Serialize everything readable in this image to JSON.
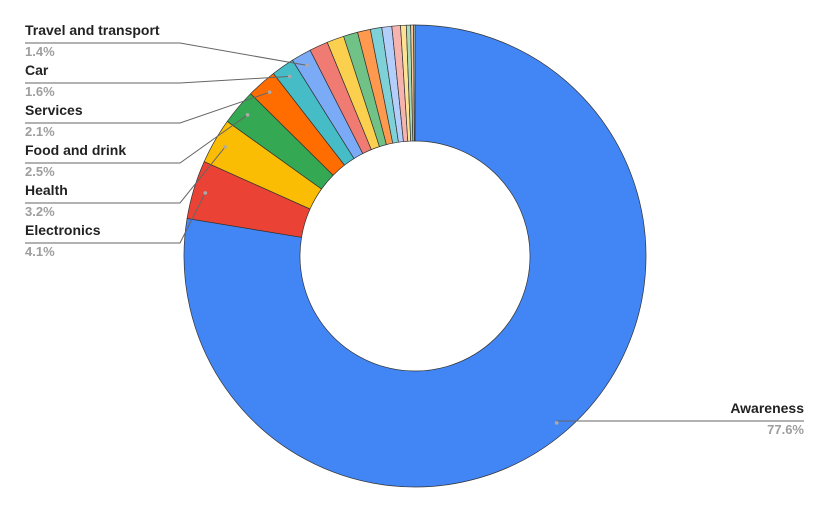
{
  "chart_data": {
    "type": "donut",
    "categories": [
      "Awareness",
      "Electronics",
      "Health",
      "Food and drink",
      "Services",
      "Car",
      "Travel and transport",
      null,
      null,
      null,
      null,
      null,
      null,
      null,
      null,
      null,
      null,
      null
    ],
    "values": [
      77.6,
      4.1,
      3.2,
      2.5,
      2.1,
      1.6,
      1.4,
      1.3,
      1.2,
      1.0,
      0.9,
      0.8,
      0.7,
      0.6,
      0.4,
      0.3,
      0.2,
      0.1
    ],
    "value_labels": [
      "77.6%",
      "4.1%",
      "3.2%",
      "2.5%",
      "2.1%",
      "1.6%",
      "1.4%",
      null,
      null,
      null,
      null,
      null,
      null,
      null,
      null,
      null,
      null,
      null
    ],
    "colors": [
      "#4285f4",
      "#ea4335",
      "#fbbc04",
      "#34a853",
      "#ff6d01",
      "#46bdc6",
      "#7baaf7",
      "#f07b72",
      "#fcd04f",
      "#71c287",
      "#ff994d",
      "#7ed1d7",
      "#b3cefb",
      "#f7b4ae",
      "#fde293",
      "#a8dab5",
      "#ffc599",
      "#b5e3e7"
    ]
  }
}
